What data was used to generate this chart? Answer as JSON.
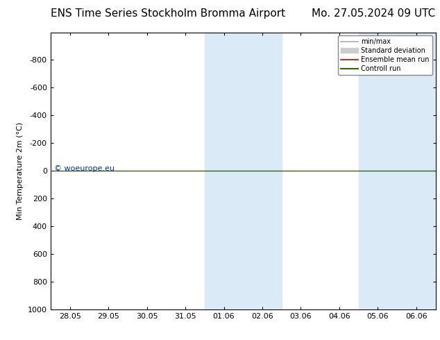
{
  "title_left": "ENS Time Series Stockholm Bromma Airport",
  "title_right": "Mo. 27.05.2024 09 UTC",
  "ylabel": "Min Temperature 2m (°C)",
  "ylim": [
    1000,
    -1000
  ],
  "yticks": [
    1000,
    800,
    600,
    400,
    200,
    0,
    -200,
    -400,
    -600,
    -800
  ],
  "ytick_labels": [
    "1000",
    "800",
    "600",
    "400",
    "200",
    "0",
    "-200",
    "-400",
    "-600",
    "-800"
  ],
  "xtick_labels": [
    "28.05",
    "29.05",
    "30.05",
    "31.05",
    "01.06",
    "02.06",
    "03.06",
    "04.06",
    "05.06",
    "06.06"
  ],
  "watermark": "© woeurope.eu",
  "shade_color": "#daeaf7",
  "shade_ranges_idx": [
    [
      4,
      6
    ],
    [
      8,
      10
    ]
  ],
  "horizontal_line_y": 0,
  "horizontal_line_color": "#336600",
  "legend_items": [
    {
      "label": "min/max",
      "color": "#aaaaaa",
      "lw": 1.2,
      "type": "line"
    },
    {
      "label": "Standard deviation",
      "color": "#cccccc",
      "lw": 5,
      "type": "band"
    },
    {
      "label": "Ensemble mean run",
      "color": "#cc0000",
      "lw": 1.2,
      "type": "line"
    },
    {
      "label": "Controll run",
      "color": "#336600",
      "lw": 1.5,
      "type": "line"
    }
  ],
  "bg_color": "#ffffff",
  "plot_bg_color": "#ffffff",
  "border_color": "#000000",
  "title_fontsize": 11,
  "axis_fontsize": 8,
  "tick_fontsize": 8,
  "watermark_color": "#0033aa",
  "watermark_fontsize": 8
}
